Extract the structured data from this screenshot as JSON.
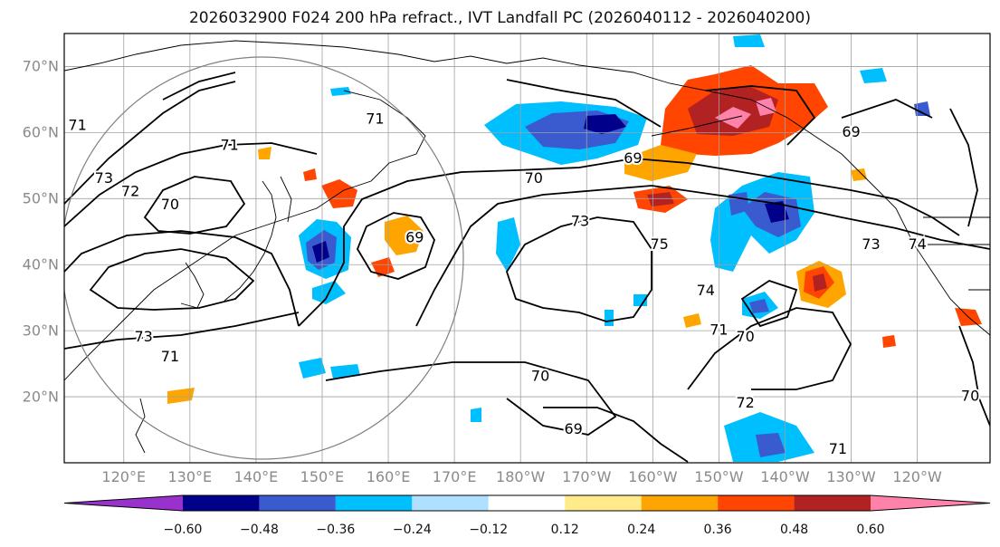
{
  "title": "2026032900 F024 200 hPa refract., IVT Landfall PC (2026040112 - 2026040200)",
  "map": {
    "lat_labels": [
      "70°N",
      "60°N",
      "50°N",
      "40°N",
      "30°N",
      "20°N"
    ],
    "lat_values": [
      70,
      60,
      50,
      40,
      30,
      20
    ],
    "lon_labels": [
      "120°E",
      "130°E",
      "140°E",
      "150°E",
      "160°E",
      "170°E",
      "180°W",
      "170°W",
      "160°W",
      "150°W",
      "140°W",
      "130°W",
      "120°W"
    ],
    "lon_values": [
      120,
      130,
      140,
      150,
      160,
      170,
      180,
      190,
      200,
      210,
      220,
      230,
      240
    ],
    "extent": {
      "lon_min": 111.0,
      "lon_max": 251.0,
      "lat_min": 10.0,
      "lat_max": 75.0
    },
    "contour_labels": [
      {
        "text": "71",
        "lon": 113,
        "lat": 61
      },
      {
        "text": "73",
        "lon": 117,
        "lat": 53
      },
      {
        "text": "72",
        "lon": 121,
        "lat": 51
      },
      {
        "text": "70",
        "lon": 127,
        "lat": 49
      },
      {
        "text": "71",
        "lon": 136,
        "lat": 58
      },
      {
        "text": "71",
        "lon": 158,
        "lat": 62
      },
      {
        "text": "69",
        "lon": 164,
        "lat": 44
      },
      {
        "text": "70",
        "lon": 182,
        "lat": 53
      },
      {
        "text": "73",
        "lon": 189,
        "lat": 46.5
      },
      {
        "text": "69",
        "lon": 197,
        "lat": 56
      },
      {
        "text": "75",
        "lon": 201,
        "lat": 43
      },
      {
        "text": "74",
        "lon": 208,
        "lat": 36
      },
      {
        "text": "71",
        "lon": 210,
        "lat": 30
      },
      {
        "text": "70",
        "lon": 214,
        "lat": 29
      },
      {
        "text": "72",
        "lon": 214,
        "lat": 19
      },
      {
        "text": "73",
        "lon": 233,
        "lat": 43
      },
      {
        "text": "74",
        "lon": 240,
        "lat": 43
      },
      {
        "text": "69",
        "lon": 230,
        "lat": 60
      },
      {
        "text": "71",
        "lon": 127,
        "lat": 26
      },
      {
        "text": "73",
        "lon": 123,
        "lat": 29
      },
      {
        "text": "70",
        "lon": 183,
        "lat": 23
      },
      {
        "text": "69",
        "lon": 188,
        "lat": 15
      },
      {
        "text": "71",
        "lon": 228,
        "lat": 12
      },
      {
        "text": "70",
        "lon": 248,
        "lat": 20
      }
    ]
  },
  "colorbar": {
    "ticks": [
      "−0.60",
      "−0.48",
      "−0.36",
      "−0.24",
      "−0.12",
      "0.12",
      "0.24",
      "0.36",
      "0.48",
      "0.60"
    ],
    "colors": [
      "#9932cc",
      "#00008b",
      "#3a5bd0",
      "#00bfff",
      "#b0e0ff",
      "#ffffff",
      "#ffeb8a",
      "#ffa500",
      "#ff4500",
      "#b22222",
      "#ff82ab",
      "#ff82ab"
    ]
  },
  "colors": {
    "positive_shading": "#ff4500",
    "negative_shading": "#3a5bd0",
    "contour": "#000000",
    "grid": "#a0a0a0",
    "circle": "#808080"
  }
}
